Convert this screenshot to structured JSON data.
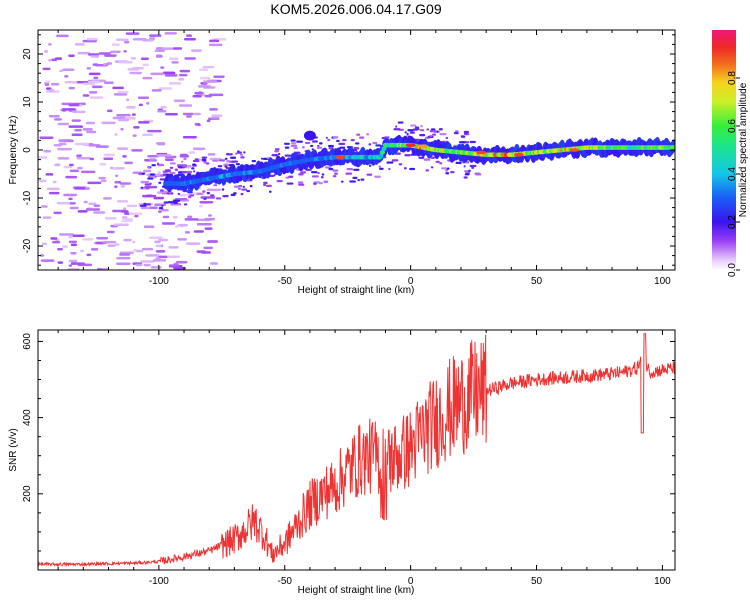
{
  "title": "KOM5.2026.006.04.17.G09",
  "chart_data": [
    {
      "type": "heatmap",
      "name": "spectrogram",
      "title": "KOM5.2026.006.04.17.G09",
      "xlabel": "Height of straight line (km)",
      "ylabel": "Frequency (Hz)",
      "xlim": [
        -148,
        105
      ],
      "ylim": [
        -25,
        25
      ],
      "xticks": [
        -100,
        -50,
        0,
        50,
        100
      ],
      "xtick_labels": [
        "-100",
        "-50",
        "0",
        "50",
        "100"
      ],
      "yticks": [
        -20,
        -10,
        0,
        10,
        20
      ],
      "ytick_labels": [
        "-20",
        "-10",
        "0",
        "10",
        "20"
      ],
      "colorbar": {
        "label": "Normalized spectral amplitude",
        "range": [
          0,
          1
        ],
        "ticks": [
          0.0,
          0.2,
          0.4,
          0.6,
          0.8
        ],
        "tick_labels": [
          "0.0",
          "0.2",
          "0.4",
          "0.6",
          "0.8"
        ],
        "colormap": "rainbow (white-purple-blue-cyan-green-yellow-red-pink)"
      },
      "ridge": {
        "description": "dominant frequency track vs height",
        "height_km": [
          -95,
          -90,
          -80,
          -70,
          -60,
          -50,
          -40,
          -30,
          -20,
          -12,
          -10,
          0,
          5,
          10,
          20,
          30,
          40,
          50,
          60,
          70,
          80,
          90,
          100,
          105
        ],
        "frequency_hz": [
          -7,
          -7,
          -6,
          -5,
          -4.5,
          -3,
          -2,
          -1.5,
          -1.5,
          -1.5,
          1,
          1,
          0.5,
          0,
          -0.5,
          -1,
          -1,
          -0.5,
          0,
          0.5,
          0.5,
          0.5,
          0.5,
          0.5
        ],
        "amplitude": [
          0.25,
          0.3,
          0.3,
          0.35,
          0.3,
          0.3,
          0.3,
          0.35,
          0.4,
          0.45,
          0.5,
          0.65,
          0.8,
          0.7,
          0.6,
          0.75,
          0.8,
          0.65,
          0.75,
          0.7,
          0.55,
          0.55,
          0.6,
          0.6
        ]
      }
    },
    {
      "type": "line",
      "name": "snr",
      "xlabel": "Height of straight line (km)",
      "ylabel": "SNR (v/v)",
      "xlim": [
        -148,
        105
      ],
      "ylim": [
        0,
        630
      ],
      "xticks": [
        -100,
        -50,
        0,
        50,
        100
      ],
      "xtick_labels": [
        "-100",
        "-50",
        "0",
        "50",
        "100"
      ],
      "yticks": [
        200,
        400,
        600
      ],
      "ytick_labels": [
        "200",
        "400",
        "600"
      ],
      "series": [
        {
          "name": "SNR",
          "color": "#ee3333",
          "x": [
            -148,
            -130,
            -110,
            -100,
            -90,
            -80,
            -70,
            -65,
            -62,
            -58,
            -55,
            -50,
            -45,
            -40,
            -35,
            -30,
            -25,
            -20,
            -15,
            -10,
            -5,
            0,
            5,
            10,
            15,
            20,
            25,
            30,
            35,
            40,
            50,
            60,
            70,
            80,
            85,
            90,
            92,
            95,
            100,
            105
          ],
          "y": [
            15,
            15,
            18,
            22,
            35,
            50,
            80,
            110,
            130,
            90,
            40,
            70,
            120,
            170,
            200,
            220,
            260,
            290,
            300,
            280,
            300,
            320,
            360,
            390,
            420,
            440,
            460,
            470,
            480,
            490,
            500,
            505,
            510,
            515,
            520,
            530,
            560,
            520,
            525,
            530
          ]
        }
      ]
    }
  ],
  "colors": {
    "snr_line": "#ee3333",
    "axis": "#000000"
  }
}
